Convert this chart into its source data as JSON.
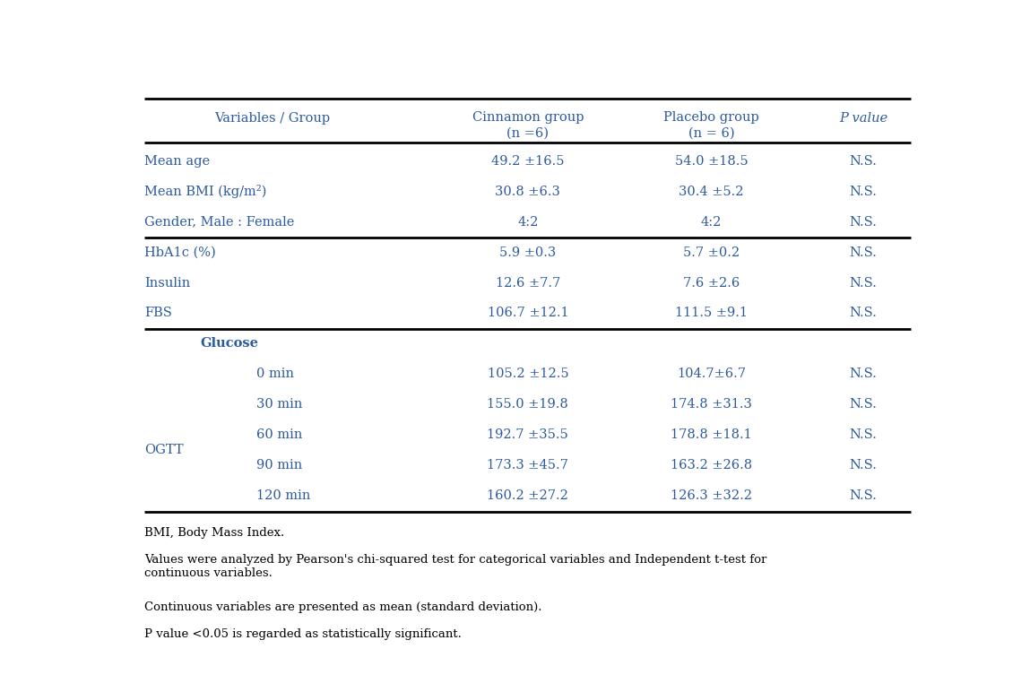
{
  "header_row1": [
    "Variables / Group",
    "Cinnamon group",
    "Placebo group",
    "P value"
  ],
  "header_row2": [
    "",
    "(n =6)",
    "(n = 6)",
    ""
  ],
  "rows": [
    {
      "var": "Mean age",
      "cin": "49.2 ±16.5",
      "pla": "54.0 ±18.5",
      "p": "N.S.",
      "indent": 0,
      "bold_var": false
    },
    {
      "var": "Mean BMI (kg/m²)",
      "cin": "30.8 ±6.3",
      "pla": "30.4 ±5.2",
      "p": "N.S.",
      "indent": 0,
      "bold_var": false
    },
    {
      "var": "Gender, Male : Female",
      "cin": "4:2",
      "pla": "4:2",
      "p": "N.S.",
      "indent": 0,
      "bold_var": false
    },
    {
      "var": "HbA1c (%)",
      "cin": "5.9 ±0.3",
      "pla": "5.7 ±0.2",
      "p": "N.S.",
      "indent": 0,
      "bold_var": false
    },
    {
      "var": "Insulin",
      "cin": "12.6 ±7.7",
      "pla": "7.6 ±2.6",
      "p": "N.S.",
      "indent": 0,
      "bold_var": false
    },
    {
      "var": "FBS",
      "cin": "106.7 ±12.1",
      "pla": "111.5 ±9.1",
      "p": "N.S.",
      "indent": 0,
      "bold_var": false
    },
    {
      "var": "Glucose",
      "cin": "",
      "pla": "",
      "p": "",
      "indent": 1,
      "bold_var": true
    },
    {
      "var": "0 min",
      "cin": "105.2 ±12.5",
      "pla": "104.7±6.7",
      "p": "N.S.",
      "indent": 2,
      "bold_var": false
    },
    {
      "var": "30 min",
      "cin": "155.0 ±19.8",
      "pla": "174.8 ±31.3",
      "p": "N.S.",
      "indent": 2,
      "bold_var": false
    },
    {
      "var": "60 min",
      "cin": "192.7 ±35.5",
      "pla": "178.8 ±18.1",
      "p": "N.S.",
      "indent": 2,
      "bold_var": false
    },
    {
      "var": "90 min",
      "cin": "173.3 ±45.7",
      "pla": "163.2 ±26.8",
      "p": "N.S.",
      "indent": 2,
      "bold_var": false
    },
    {
      "var": "120 min",
      "cin": "160.2 ±27.2",
      "pla": "126.3 ±32.2",
      "p": "N.S.",
      "indent": 2,
      "bold_var": false
    }
  ],
  "footnotes": [
    "BMI, Body Mass Index.",
    "Values were analyzed by Pearson's chi-squared test for categorical variables and Independent t-test for\ncontinuous variables.",
    "Continuous variables are presented as mean (standard deviation).",
    "P value <0.05 is regarded as statistically significant."
  ],
  "ogtt_label": "OGTT",
  "text_color": "#2c5aa0",
  "bg_color": "#ffffff",
  "thick_line_color": "#000000",
  "section_breaks_thick": [
    2,
    5
  ]
}
